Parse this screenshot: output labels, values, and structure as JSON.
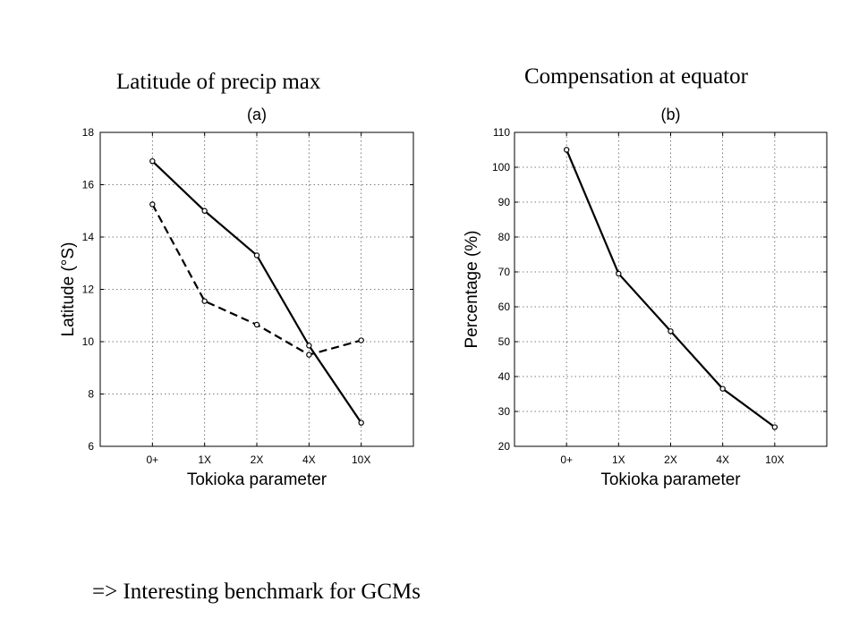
{
  "slide": {
    "title_a": "Latitude of precip max",
    "title_b": "Compensation at equator",
    "footer": "=> Interesting benchmark for GCMs"
  },
  "chart_data": [
    {
      "type": "line",
      "panel_label": "(a)",
      "xlabel": "Tokioka parameter",
      "ylabel": "Latitude (°S)",
      "categories": [
        "0+",
        "1X",
        "2X",
        "4X",
        "10X"
      ],
      "ylim": [
        6,
        18
      ],
      "yticks": [
        6,
        8,
        10,
        12,
        14,
        16,
        18
      ],
      "grid": true,
      "series": [
        {
          "style": "solid",
          "values": [
            16.9,
            15.0,
            13.3,
            9.85,
            6.9
          ]
        },
        {
          "style": "dashed",
          "values": [
            15.25,
            11.55,
            10.65,
            9.5,
            10.05
          ]
        }
      ]
    },
    {
      "type": "line",
      "panel_label": "(b)",
      "xlabel": "Tokioka parameter",
      "ylabel": "Percentage (%)",
      "categories": [
        "0+",
        "1X",
        "2X",
        "4X",
        "10X"
      ],
      "ylim": [
        20,
        110
      ],
      "yticks": [
        20,
        30,
        40,
        50,
        60,
        70,
        80,
        90,
        100,
        110
      ],
      "grid": true,
      "series": [
        {
          "style": "solid",
          "values": [
            105,
            69.5,
            53,
            36.5,
            25.5
          ]
        }
      ]
    }
  ]
}
